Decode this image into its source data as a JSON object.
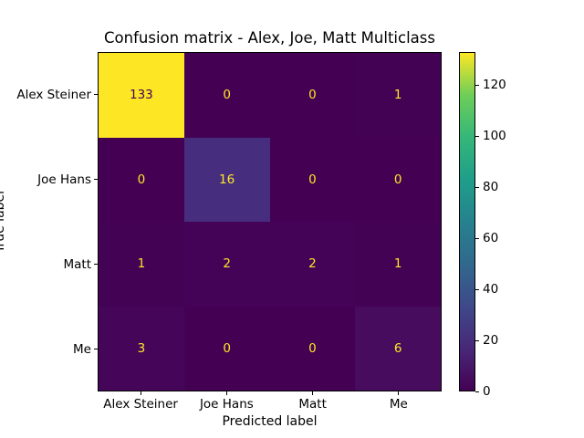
{
  "chart_data": {
    "type": "heatmap",
    "title": "Confusion matrix - Alex, Joe, Matt Multiclass",
    "xlabel": "Predicted label",
    "ylabel": "True label",
    "x_categories": [
      "Alex Steiner",
      "Joe Hans",
      "Matt",
      "Me"
    ],
    "y_categories": [
      "Alex Steiner",
      "Joe Hans",
      "Matt",
      "Me"
    ],
    "matrix": [
      [
        133,
        0,
        0,
        1
      ],
      [
        0,
        16,
        0,
        0
      ],
      [
        1,
        2,
        2,
        1
      ],
      [
        3,
        0,
        0,
        6
      ]
    ],
    "vmin": 0,
    "vmax": 133,
    "colormap": "viridis",
    "grid": false,
    "legend_position": "right-colorbar",
    "colorbar_ticks": [
      0,
      20,
      40,
      60,
      80,
      100,
      120
    ],
    "cell_colors": [
      [
        "#fde725",
        "#440154",
        "#440154",
        "#440255"
      ],
      [
        "#440154",
        "#472d7e",
        "#440154",
        "#440154"
      ],
      [
        "#440255",
        "#450357",
        "#450357",
        "#440255"
      ],
      [
        "#45065a",
        "#440154",
        "#440154",
        "#470c5e"
      ]
    ],
    "text_color_on_dark": "#fde725",
    "text_color_on_light": "#440154",
    "text_threshold": 66.5,
    "viridis_stops": [
      "#440154",
      "#482878",
      "#3e4989",
      "#31688e",
      "#26828e",
      "#1f9e89",
      "#35b779",
      "#6ece58",
      "#fde725"
    ],
    "axis_color": "#000000",
    "background_color": "#ffffff"
  }
}
